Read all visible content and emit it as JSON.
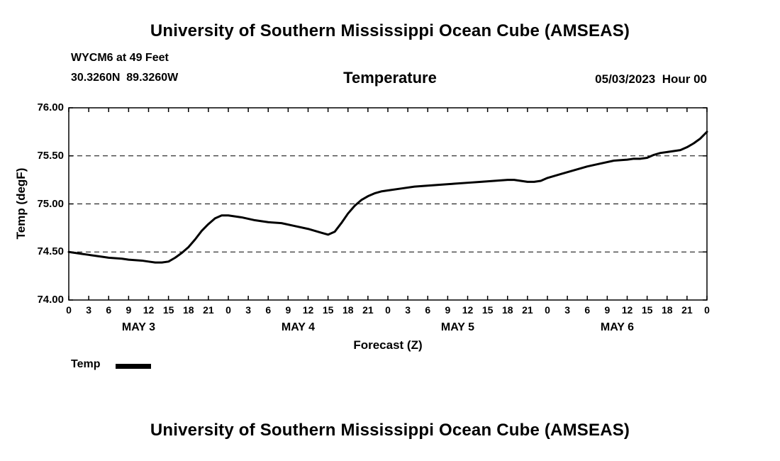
{
  "page": {
    "top_title": "University of Southern Mississippi Ocean Cube (AMSEAS)",
    "bottom_title": "University of Southern Mississippi Ocean Cube (AMSEAS)"
  },
  "header": {
    "station": "WYCM6 at 49 Feet",
    "coordinates": "30.3260N  89.3260W",
    "chart_title": "Temperature",
    "datetime": "05/03/2023  Hour 00"
  },
  "legend": {
    "label": "Temp",
    "swatch_color": "#000000"
  },
  "chart_data": {
    "type": "line",
    "title": "Temperature",
    "xlabel": "Forecast (Z)",
    "ylabel": "Temp (degF)",
    "ylim": [
      74.0,
      76.0
    ],
    "yticks": [
      74.0,
      74.5,
      75.0,
      75.5,
      76.0
    ],
    "ytick_labels": [
      "74.00",
      "74.50",
      "75.00",
      "75.50",
      "76.00"
    ],
    "xlim_hours": [
      0,
      96
    ],
    "xtick_interval_hours": 3,
    "xtick_labels": [
      "0",
      "3",
      "6",
      "9",
      "12",
      "15",
      "18",
      "21",
      "0",
      "3",
      "6",
      "9",
      "12",
      "15",
      "18",
      "21",
      "0",
      "3",
      "6",
      "9",
      "12",
      "15",
      "18",
      "21",
      "0",
      "3",
      "6",
      "9",
      "12",
      "15",
      "18",
      "21",
      "0"
    ],
    "day_labels": [
      {
        "label": "MAY 3",
        "center_hour": 10.5
      },
      {
        "label": "MAY 4",
        "center_hour": 34.5
      },
      {
        "label": "MAY 5",
        "center_hour": 58.5
      },
      {
        "label": "MAY 6",
        "center_hour": 82.5
      }
    ],
    "grid": "dashed-horizontal",
    "legend_position": "bottom-left",
    "series": [
      {
        "name": "Temp",
        "color": "#000000",
        "points": [
          [
            0,
            74.5
          ],
          [
            2,
            74.48
          ],
          [
            3,
            74.47
          ],
          [
            5,
            74.45
          ],
          [
            6,
            74.44
          ],
          [
            8,
            74.43
          ],
          [
            9,
            74.42
          ],
          [
            11,
            74.41
          ],
          [
            12,
            74.4
          ],
          [
            13,
            74.39
          ],
          [
            14,
            74.39
          ],
          [
            15,
            74.4
          ],
          [
            16,
            74.44
          ],
          [
            17,
            74.49
          ],
          [
            18,
            74.55
          ],
          [
            19,
            74.63
          ],
          [
            20,
            74.72
          ],
          [
            21,
            74.79
          ],
          [
            22,
            74.85
          ],
          [
            23,
            74.88
          ],
          [
            24,
            74.88
          ],
          [
            26,
            74.86
          ],
          [
            28,
            74.83
          ],
          [
            30,
            74.81
          ],
          [
            32,
            74.8
          ],
          [
            34,
            74.77
          ],
          [
            36,
            74.74
          ],
          [
            37,
            74.72
          ],
          [
            38,
            74.7
          ],
          [
            39,
            74.68
          ],
          [
            40,
            74.71
          ],
          [
            41,
            74.8
          ],
          [
            42,
            74.9
          ],
          [
            43,
            74.98
          ],
          [
            44,
            75.04
          ],
          [
            45,
            75.08
          ],
          [
            46,
            75.11
          ],
          [
            47,
            75.13
          ],
          [
            48,
            75.14
          ],
          [
            50,
            75.16
          ],
          [
            52,
            75.18
          ],
          [
            54,
            75.19
          ],
          [
            56,
            75.2
          ],
          [
            58,
            75.21
          ],
          [
            60,
            75.22
          ],
          [
            62,
            75.23
          ],
          [
            64,
            75.24
          ],
          [
            66,
            75.25
          ],
          [
            67,
            75.25
          ],
          [
            68,
            75.24
          ],
          [
            69,
            75.23
          ],
          [
            70,
            75.23
          ],
          [
            71,
            75.24
          ],
          [
            72,
            75.27
          ],
          [
            74,
            75.31
          ],
          [
            76,
            75.35
          ],
          [
            78,
            75.39
          ],
          [
            80,
            75.42
          ],
          [
            82,
            75.45
          ],
          [
            84,
            75.46
          ],
          [
            85,
            75.47
          ],
          [
            86,
            75.47
          ],
          [
            87,
            75.48
          ],
          [
            88,
            75.51
          ],
          [
            89,
            75.53
          ],
          [
            90,
            75.54
          ],
          [
            91,
            75.55
          ],
          [
            92,
            75.56
          ],
          [
            93,
            75.59
          ],
          [
            94,
            75.63
          ],
          [
            95,
            75.68
          ],
          [
            96,
            75.75
          ]
        ]
      }
    ]
  }
}
